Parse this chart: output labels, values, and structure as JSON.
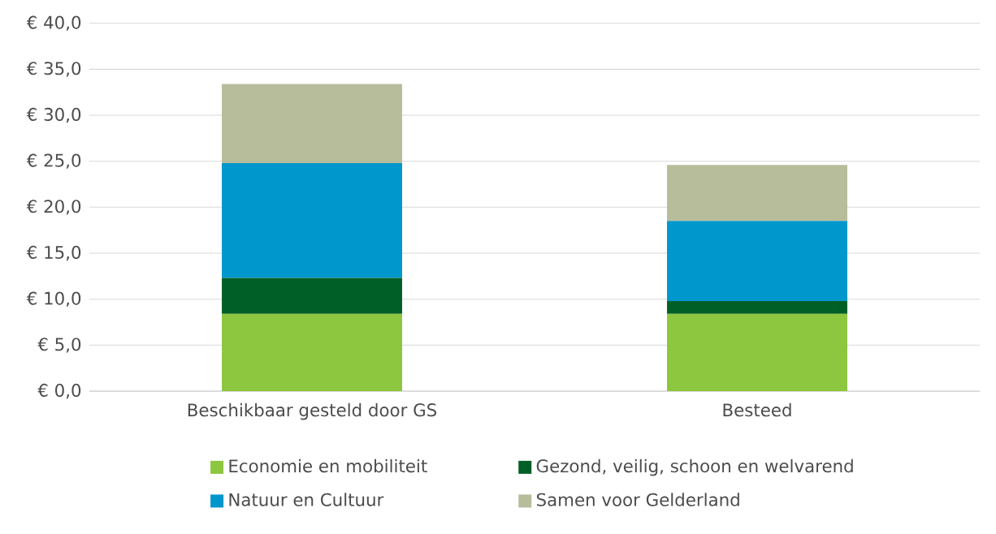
{
  "chart_data": {
    "type": "bar",
    "stacked": true,
    "categories": [
      "Beschikbaar gesteld door GS",
      "Besteed"
    ],
    "series": [
      {
        "name": "Economie en mobiliteit",
        "color": "#8dc63f",
        "values": [
          8.4,
          8.4
        ]
      },
      {
        "name": "Gezond, veilig, schoon en welvarend",
        "color": "#005f27",
        "values": [
          3.9,
          1.4
        ]
      },
      {
        "name": "Natuur en Cultuur",
        "color": "#0097cc",
        "values": [
          12.5,
          8.7
        ]
      },
      {
        "name": "Samen voor Gelderland",
        "color": "#b7bd9b",
        "values": [
          8.6,
          6.1
        ]
      }
    ],
    "ylim": [
      0,
      40
    ],
    "yticks": [
      {
        "value": 0,
        "label": "€ 0,0"
      },
      {
        "value": 5,
        "label": "€ 5,0"
      },
      {
        "value": 10,
        "label": "€ 10,0"
      },
      {
        "value": 15,
        "label": "€ 15,0"
      },
      {
        "value": 20,
        "label": "€ 20,0"
      },
      {
        "value": 25,
        "label": "€ 25,0"
      },
      {
        "value": 30,
        "label": "€ 30,0"
      },
      {
        "value": 35,
        "label": "€ 35,0"
      },
      {
        "value": 40,
        "label": "€ 40,0"
      }
    ],
    "grid": "y",
    "legend": "bottom"
  }
}
